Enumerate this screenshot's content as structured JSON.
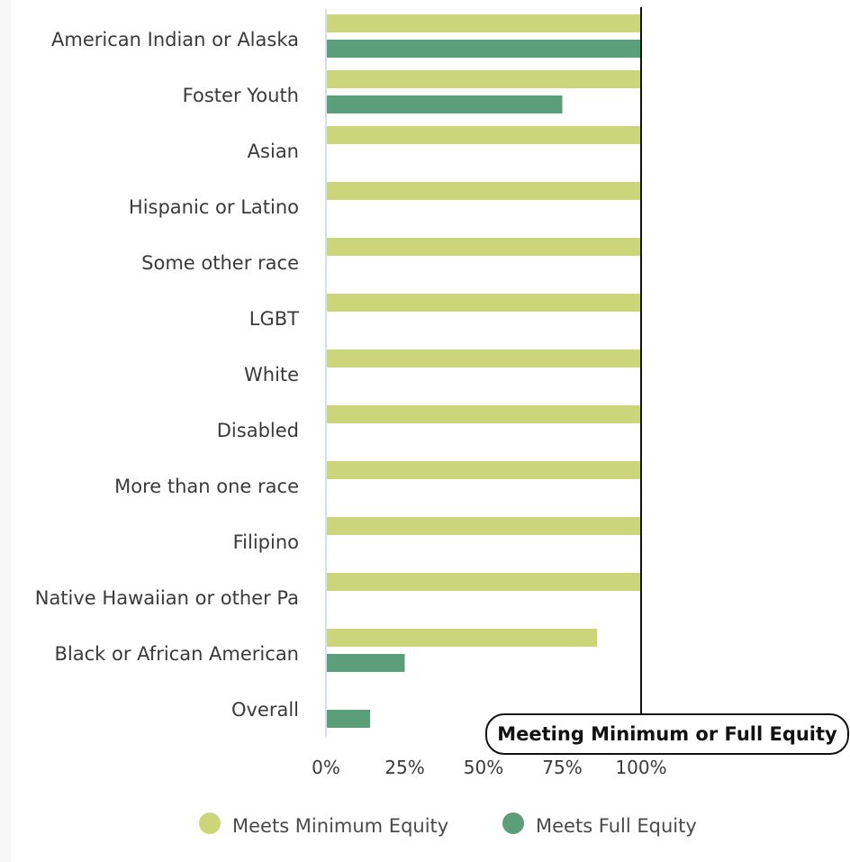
{
  "chart_data": {
    "type": "bar",
    "orientation": "horizontal",
    "categories": [
      "American Indian or Alaska",
      "Foster Youth",
      "Asian",
      "Hispanic or Latino",
      "Some other race",
      "LGBT",
      "White",
      "Disabled",
      "More than one race",
      "Filipino",
      "Native Hawaiian or other Pa",
      "Black or African American",
      "Overall"
    ],
    "series": [
      {
        "name": "Meets Minimum Equity",
        "color": "#cbd67a",
        "values": [
          100,
          100,
          100,
          100,
          100,
          100,
          100,
          100,
          100,
          100,
          100,
          86,
          null
        ]
      },
      {
        "name": "Meets Full Equity",
        "color": "#5b9e7a",
        "values": [
          100,
          75,
          null,
          null,
          null,
          null,
          null,
          null,
          null,
          null,
          null,
          25,
          14
        ]
      }
    ],
    "xlim": [
      0,
      100
    ],
    "x_ticks": [
      "0%",
      "25%",
      "50%",
      "75%",
      "100%"
    ],
    "reference_line": {
      "value": 100,
      "label": "Meeting Minimum or Full Equity"
    },
    "legend_position": "bottom",
    "grid": false,
    "title": "",
    "xlabel": "",
    "ylabel": ""
  }
}
